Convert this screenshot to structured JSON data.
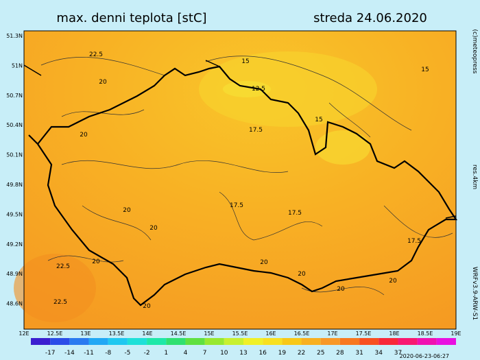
{
  "header": {
    "title": "max. denni teplota [stC]",
    "date": "streda 24.06.2020"
  },
  "side": {
    "copyright": "(c)meteopress",
    "resolution": "res.4km",
    "model": "WRFv3.9-ARW-S1"
  },
  "map": {
    "lat_labels": [
      "51.3N",
      "51N",
      "50.7N",
      "50.4N",
      "50.1N",
      "49.8N",
      "49.5N",
      "49.2N",
      "48.9N",
      "48.6N"
    ],
    "lon_labels": [
      "12E",
      "12.5E",
      "13E",
      "13.5E",
      "14E",
      "14.5E",
      "15E",
      "15.5E",
      "16E",
      "16.5E",
      "17E",
      "17.5E",
      "18E",
      "18.5E",
      "19E"
    ],
    "contour_labels": [
      22.5,
      15,
      15,
      12.5,
      20,
      20,
      17.5,
      15,
      20,
      17.5,
      17.5,
      20,
      17.5,
      20,
      22.5,
      20,
      22.5,
      20,
      20,
      20,
      20
    ]
  },
  "colorbar": {
    "ticks": [
      -17,
      -14,
      -11,
      -8,
      -5,
      -2,
      1,
      4,
      7,
      10,
      13,
      16,
      19,
      22,
      25,
      28,
      31,
      34,
      37
    ],
    "colors": [
      "#3b1fd0",
      "#2b4de8",
      "#2a7af0",
      "#22a8f5",
      "#20c8f0",
      "#1ee0d8",
      "#1ee8a8",
      "#30e070",
      "#60e040",
      "#98e830",
      "#c8f030",
      "#f0f028",
      "#f8e020",
      "#f8c818",
      "#f8b020",
      "#f89828",
      "#f87820",
      "#f85020",
      "#f82838",
      "#f81870",
      "#f010b0",
      "#e810e0"
    ]
  },
  "footer": {
    "timestamp": "2020-06-23-06:27"
  }
}
